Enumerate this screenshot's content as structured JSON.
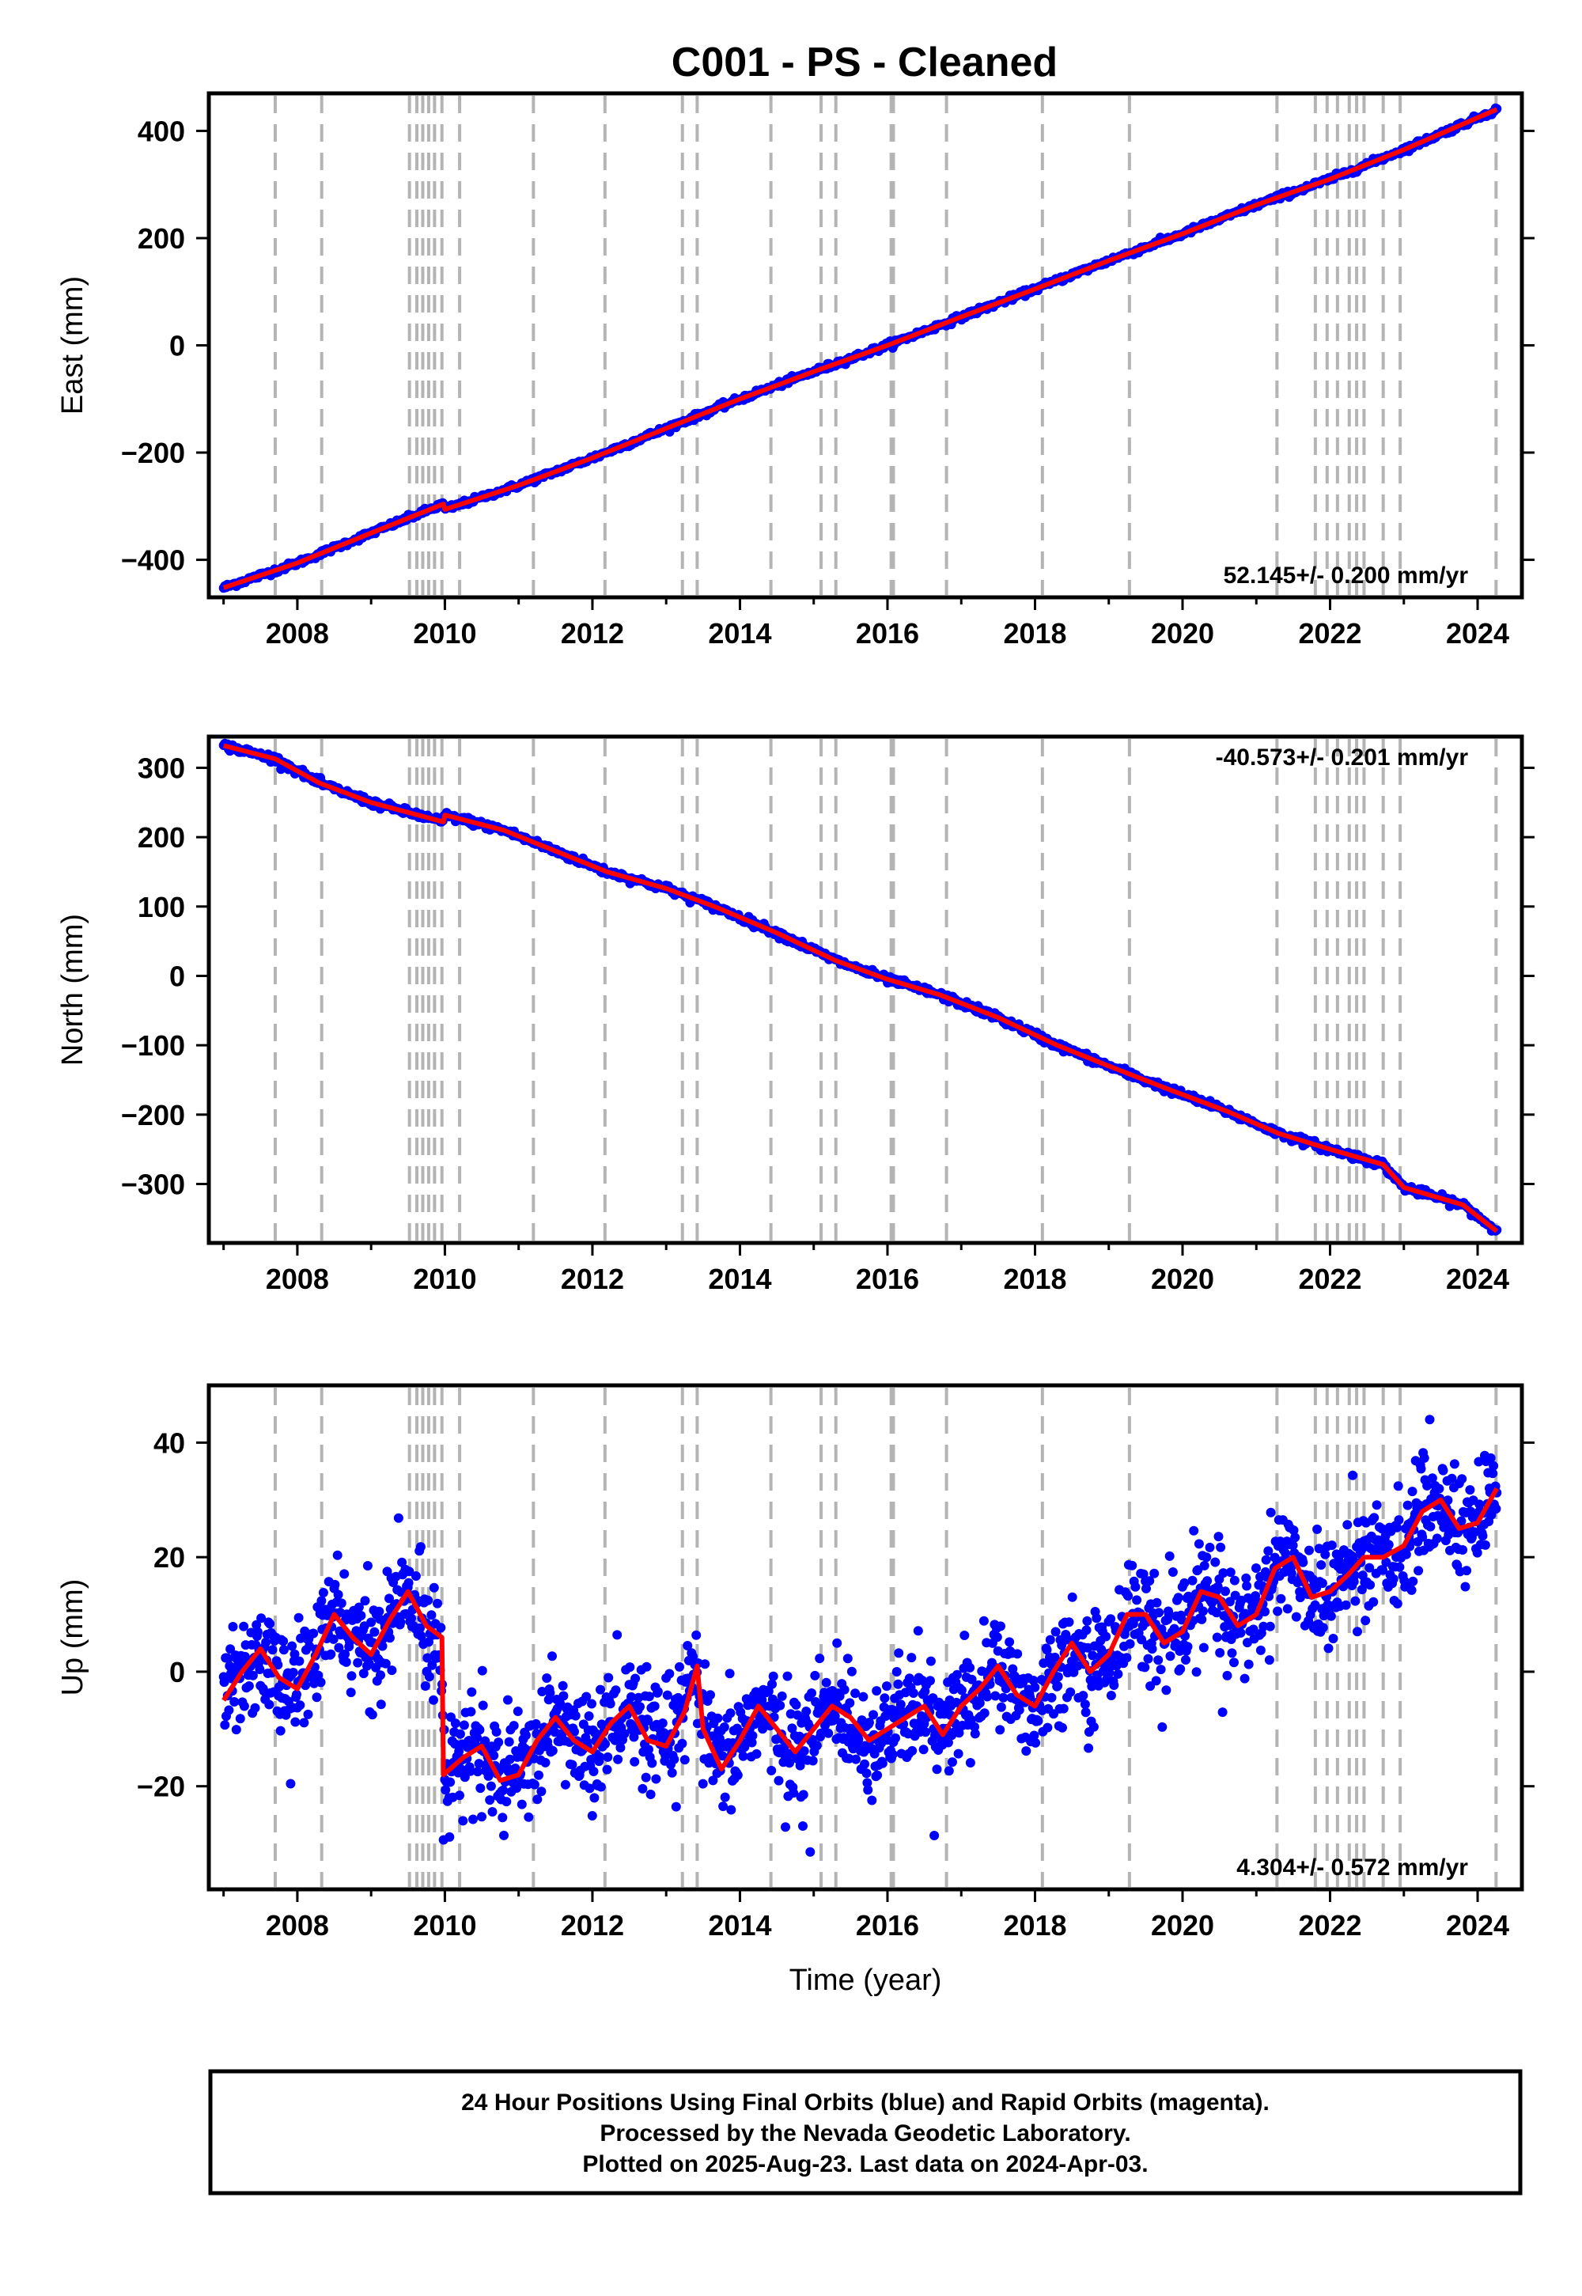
{
  "title": "C001  - PS - Cleaned",
  "colors": {
    "data_points": "#0000ff",
    "model_fit": "#ff0000",
    "event_lines": "#b4b4b4",
    "frame": "#000000"
  },
  "footer": {
    "line1": "24 Hour Positions Using Final Orbits (blue) and Rapid Orbits (magenta).",
    "line2": "Processed by the Nevada Geodetic Laboratory.",
    "line3": "Plotted on 2025-Aug-23. Last data on 2024-Apr-03."
  },
  "chart_data": [
    {
      "type": "scatter",
      "id": "east",
      "ylabel": "East (mm)",
      "xlabel": "",
      "rate_label": "52.145+/- 0.200 mm/yr",
      "rate_position": "bottom-right",
      "xlim": [
        2006.8,
        2024.6
      ],
      "ylim": [
        -470,
        470
      ],
      "xticks": [
        2008,
        2010,
        2012,
        2014,
        2016,
        2018,
        2020,
        2022,
        2024
      ],
      "yticks": [
        400,
        200,
        0,
        -200,
        -400
      ],
      "event_lines": [
        2007.7,
        2008.33,
        2009.52,
        2009.62,
        2009.7,
        2009.78,
        2009.86,
        2009.96,
        2010.2,
        2011.2,
        2012.17,
        2013.22,
        2013.42,
        2014.42,
        2015.1,
        2015.3,
        2016.05,
        2016.08,
        2016.8,
        2018.1,
        2019.28,
        2021.28,
        2021.8,
        2021.96,
        2022.1,
        2022.26,
        2022.36,
        2022.46,
        2022.72,
        2022.95,
        2024.25
      ],
      "series": [
        {
          "x": [
            2007.0,
            2008.0,
            2009.0,
            2009.98,
            2010.0,
            2011.0,
            2012.0,
            2013.0,
            2014.0,
            2015.0,
            2016.0,
            2017.0,
            2018.0,
            2019.0,
            2020.0,
            2021.0,
            2022.0,
            2023.0,
            2024.26
          ],
          "values": [
            -452,
            -406,
            -350,
            -296,
            -306,
            -261,
            -210,
            -155,
            -100,
            -49,
            0,
            53,
            105,
            158,
            208,
            262,
            310,
            365,
            440
          ]
        }
      ]
    },
    {
      "type": "scatter",
      "id": "north",
      "ylabel": "North (mm)",
      "xlabel": "",
      "rate_label": "-40.573+/- 0.201 mm/yr",
      "rate_position": "top-right",
      "xlim": [
        2006.8,
        2024.6
      ],
      "ylim": [
        -385,
        345
      ],
      "xticks": [
        2008,
        2010,
        2012,
        2014,
        2016,
        2018,
        2020,
        2022,
        2024
      ],
      "yticks": [
        300,
        200,
        100,
        0,
        -100,
        -200,
        -300
      ],
      "event_lines": [
        2007.7,
        2008.33,
        2009.52,
        2009.62,
        2009.7,
        2009.78,
        2009.86,
        2009.96,
        2010.2,
        2011.2,
        2012.17,
        2013.22,
        2013.42,
        2014.42,
        2015.1,
        2015.3,
        2016.05,
        2016.08,
        2016.8,
        2018.1,
        2019.28,
        2021.28,
        2021.8,
        2021.96,
        2022.1,
        2022.26,
        2022.36,
        2022.46,
        2022.72,
        2022.95,
        2024.25
      ],
      "series": [
        {
          "x": [
            2007.0,
            2007.7,
            2008.3,
            2009.0,
            2009.98,
            2010.0,
            2010.8,
            2011.5,
            2012.2,
            2013.0,
            2013.7,
            2014.5,
            2015.3,
            2016.0,
            2016.7,
            2017.5,
            2018.3,
            2019.0,
            2019.8,
            2020.6,
            2021.3,
            2022.0,
            2022.72,
            2023.0,
            2023.8,
            2024.26
          ],
          "values": [
            332,
            313,
            278,
            250,
            222,
            232,
            210,
            180,
            150,
            126,
            98,
            62,
            22,
            -5,
            -27,
            -60,
            -100,
            -130,
            -163,
            -195,
            -227,
            -250,
            -272,
            -305,
            -330,
            -368
          ]
        }
      ]
    },
    {
      "type": "scatter",
      "id": "up",
      "ylabel": "Up (mm)",
      "xlabel": "Time (year)",
      "rate_label": "4.304+/- 0.572 mm/yr",
      "rate_position": "bottom-right",
      "xlim": [
        2006.8,
        2024.6
      ],
      "ylim": [
        -38,
        50
      ],
      "xticks": [
        2008,
        2010,
        2012,
        2014,
        2016,
        2018,
        2020,
        2022,
        2024
      ],
      "yticks": [
        40,
        20,
        0,
        -20
      ],
      "event_lines": [
        2007.7,
        2008.33,
        2009.52,
        2009.62,
        2009.7,
        2009.78,
        2009.86,
        2009.96,
        2010.2,
        2011.2,
        2012.17,
        2013.22,
        2013.42,
        2014.42,
        2015.1,
        2015.3,
        2016.05,
        2016.08,
        2016.8,
        2018.1,
        2019.28,
        2021.28,
        2021.8,
        2021.96,
        2022.1,
        2022.26,
        2022.36,
        2022.46,
        2022.72,
        2022.95,
        2024.25
      ],
      "series": [
        {
          "x": [
            2007.0,
            2007.25,
            2007.5,
            2007.75,
            2008.0,
            2008.25,
            2008.5,
            2008.75,
            2009.0,
            2009.25,
            2009.5,
            2009.75,
            2009.96,
            2009.98,
            2010.25,
            2010.5,
            2010.75,
            2011.0,
            2011.25,
            2011.5,
            2011.75,
            2012.0,
            2012.25,
            2012.5,
            2012.75,
            2013.0,
            2013.25,
            2013.42,
            2013.5,
            2013.75,
            2014.0,
            2014.25,
            2014.5,
            2014.75,
            2015.0,
            2015.25,
            2015.5,
            2015.75,
            2016.0,
            2016.25,
            2016.5,
            2016.75,
            2017.0,
            2017.25,
            2017.5,
            2017.75,
            2018.0,
            2018.25,
            2018.5,
            2018.75,
            2019.0,
            2019.25,
            2019.5,
            2019.75,
            2020.0,
            2020.25,
            2020.5,
            2020.75,
            2021.0,
            2021.25,
            2021.5,
            2021.75,
            2022.0,
            2022.25,
            2022.46,
            2022.72,
            2023.0,
            2023.25,
            2023.5,
            2023.75,
            2024.0,
            2024.26
          ],
          "values": [
            -5,
            0,
            4,
            -1,
            -3,
            3,
            10,
            6,
            3,
            9,
            14,
            8,
            6,
            -18,
            -15,
            -13,
            -19,
            -18,
            -12,
            -8,
            -12,
            -14,
            -9,
            -6,
            -12,
            -13,
            -7,
            1,
            -10,
            -17,
            -12,
            -6,
            -10,
            -14,
            -10,
            -6,
            -8,
            -12,
            -10,
            -8,
            -6,
            -11,
            -6,
            -3,
            1,
            -4,
            -6,
            0,
            5,
            0,
            3,
            10,
            10,
            5,
            7,
            14,
            13,
            8,
            10,
            18,
            20,
            13,
            14,
            17,
            20,
            20,
            22,
            28,
            30,
            25,
            26,
            32
          ]
        }
      ]
    }
  ]
}
